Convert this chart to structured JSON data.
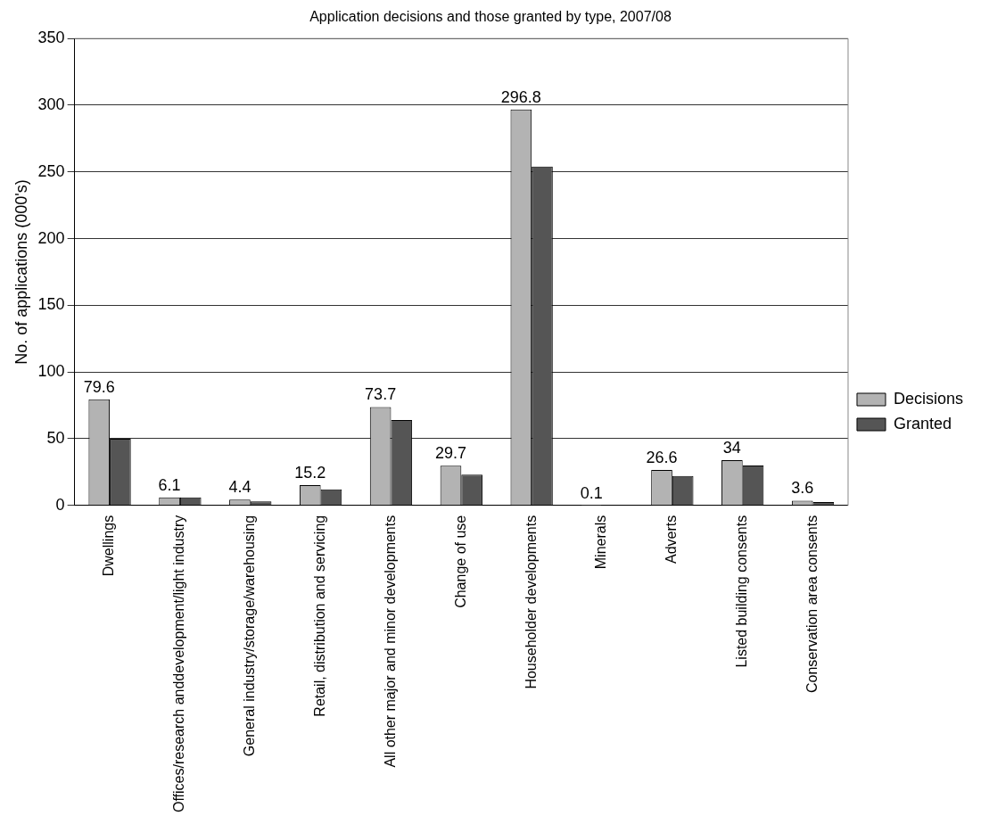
{
  "chart_data": {
    "type": "bar",
    "title": "Application decisions and those granted by type, 2007/08",
    "ylabel": "No. of applications (000's)",
    "categories": [
      "Dwellings",
      "Offices/research anddevelopment/light industry",
      "General industry/storage/warehousing",
      "Retail, distribution and servicing",
      "All other major and minor developments",
      "Change of use",
      "Householder developments",
      "Minerals",
      "Adverts",
      "Listed building consents",
      "Conservation area consents"
    ],
    "series": [
      {
        "name": "Decisions",
        "color": "#b3b3b3",
        "values": [
          79.6,
          6.1,
          4.4,
          15.2,
          73.7,
          29.7,
          296.8,
          0.1,
          26.6,
          34,
          3.6
        ],
        "value_labels": [
          "79.6",
          "6.1",
          "4.4",
          "15.2",
          "73.7",
          "29.7",
          "296.8",
          "0.1",
          "26.6",
          "34",
          "3.6"
        ]
      },
      {
        "name": "Granted",
        "color": "#555555",
        "values": [
          50,
          6,
          3,
          12,
          64,
          23,
          254,
          0,
          22,
          30,
          2.5
        ]
      }
    ],
    "ylim": [
      0,
      350
    ],
    "yticks": [
      0,
      50,
      100,
      150,
      200,
      250,
      300,
      350
    ],
    "grid": "y",
    "legend": "right"
  }
}
